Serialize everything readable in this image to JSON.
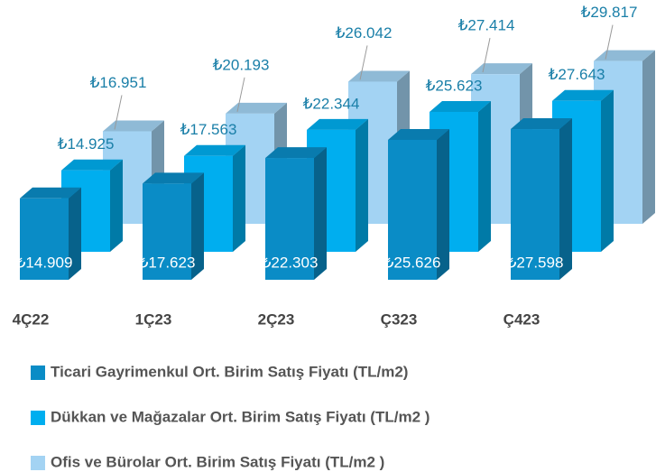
{
  "chart_data": {
    "type": "bar3d",
    "categories": [
      "4Ç22",
      "1Ç23",
      "2Ç23",
      "Ç323",
      "Ç423"
    ],
    "series": [
      {
        "name": "Ticari Gayrimenkul Ort. Birim Satış Fiyatı (TL/m2)",
        "color": "#0a8cc6",
        "values": [
          14909,
          17623,
          22303,
          25626,
          27598
        ],
        "value_labels": [
          "₺14.909",
          "₺17.623",
          "₺22.303",
          "₺25.626",
          "₺27.598"
        ]
      },
      {
        "name": "Dükkan ve Mağazalar Ort. Birim Satış Fiyatı (TL/m2 )",
        "color": "#00aeef",
        "values": [
          14925,
          17563,
          22344,
          25623,
          27643
        ],
        "value_labels": [
          "₺14.925",
          "₺17.563",
          "₺22.344",
          "₺25.623",
          "₺27.643"
        ]
      },
      {
        "name": "Ofis ve Bürolar Ort. Birim Satış Fiyatı (TL/m2 )",
        "color": "#a3d3f3",
        "values": [
          16951,
          20193,
          26042,
          27414,
          29817
        ],
        "value_labels": [
          "₺16.951",
          "₺20.193",
          "₺26.042",
          "₺27.414",
          "₺29.817"
        ]
      }
    ]
  }
}
